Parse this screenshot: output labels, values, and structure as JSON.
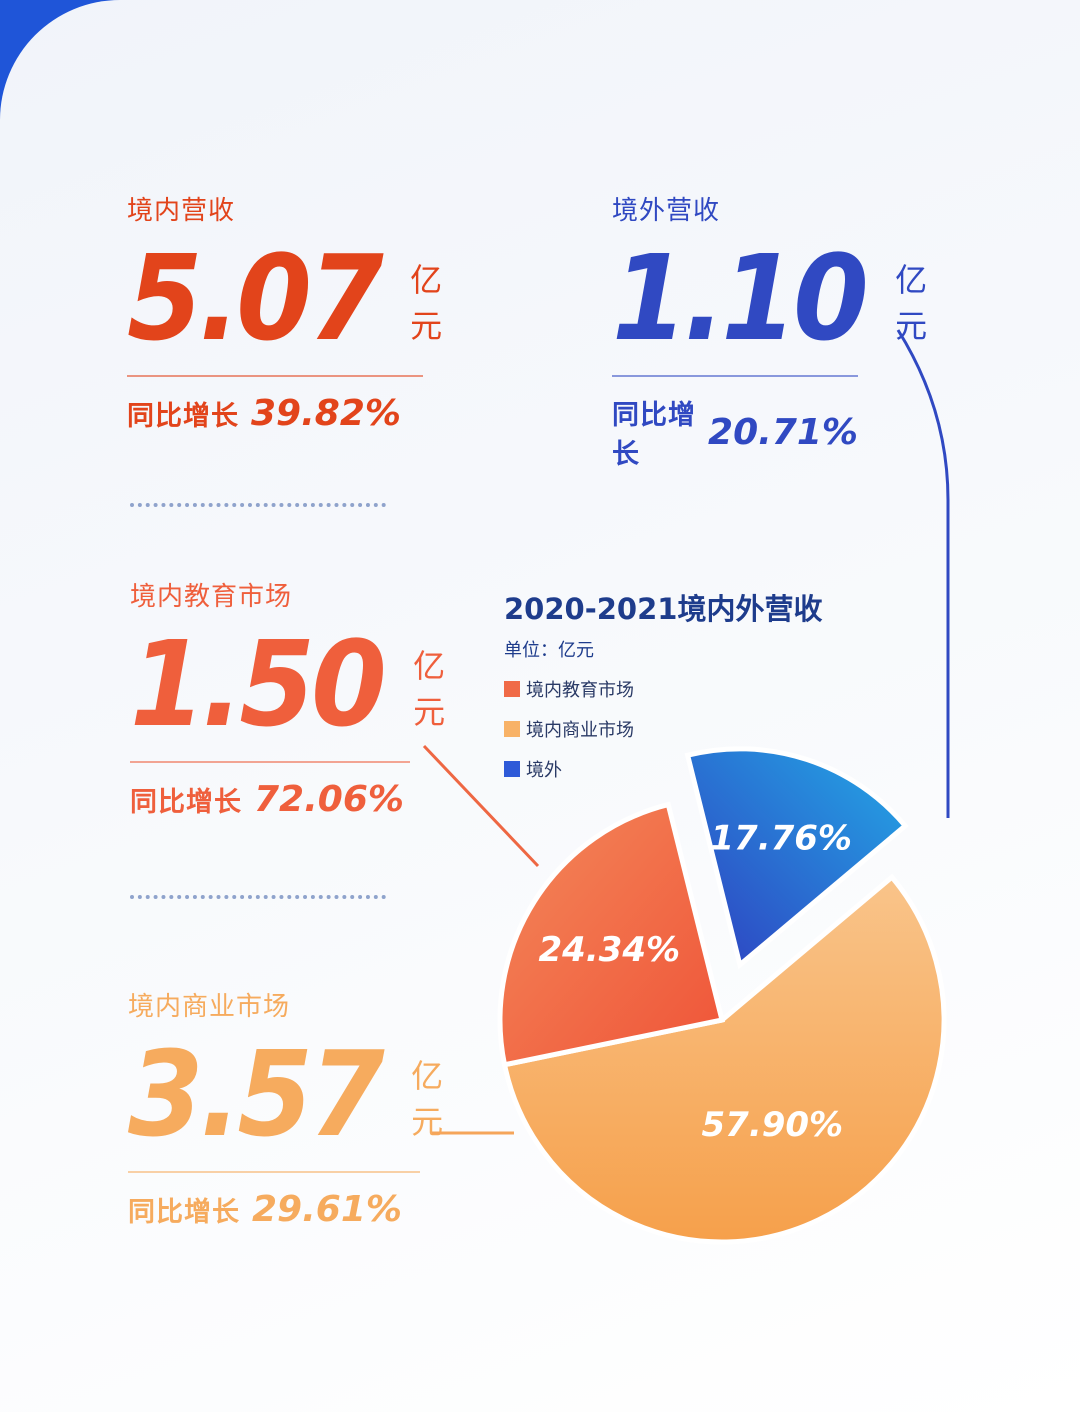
{
  "stats": {
    "domestic_revenue": {
      "label": "境内营收",
      "value": "5.07",
      "unit": "亿元",
      "growth_label": "同比增长",
      "growth": "39.82%",
      "color": "#e2441b"
    },
    "overseas_revenue": {
      "label": "境外营收",
      "value": "1.10",
      "unit": "亿元",
      "growth_label": "同比增长",
      "growth": "20.71%",
      "color": "#3049c2"
    },
    "domestic_education": {
      "label": "境内教育市场",
      "value": "1.50",
      "unit": "亿元",
      "growth_label": "同比增长",
      "growth": "72.06%",
      "color": "#ef5f3c"
    },
    "domestic_commercial": {
      "label": "境内商业市场",
      "value": "3.57",
      "unit": "亿元",
      "growth_label": "同比增长",
      "growth": "29.61%",
      "color": "#f6ab5e"
    }
  },
  "chart_data": {
    "type": "pie",
    "title": "2020-2021境内外营收",
    "unit_label": "单位：亿元",
    "legend": [
      "境内教育市场",
      "境内商业市场",
      "境外"
    ],
    "slices": [
      {
        "name": "境内教育市场",
        "value": 24.34,
        "label": "24.34%",
        "color": "#f06a47",
        "exploded": false
      },
      {
        "name": "境内商业市场",
        "value": 57.9,
        "label": "57.90%",
        "color": "#f8b267",
        "exploded": false
      },
      {
        "name": "境外",
        "value": 17.76,
        "label": "17.76%",
        "color": "#2e5ad8",
        "exploded": true
      }
    ]
  }
}
